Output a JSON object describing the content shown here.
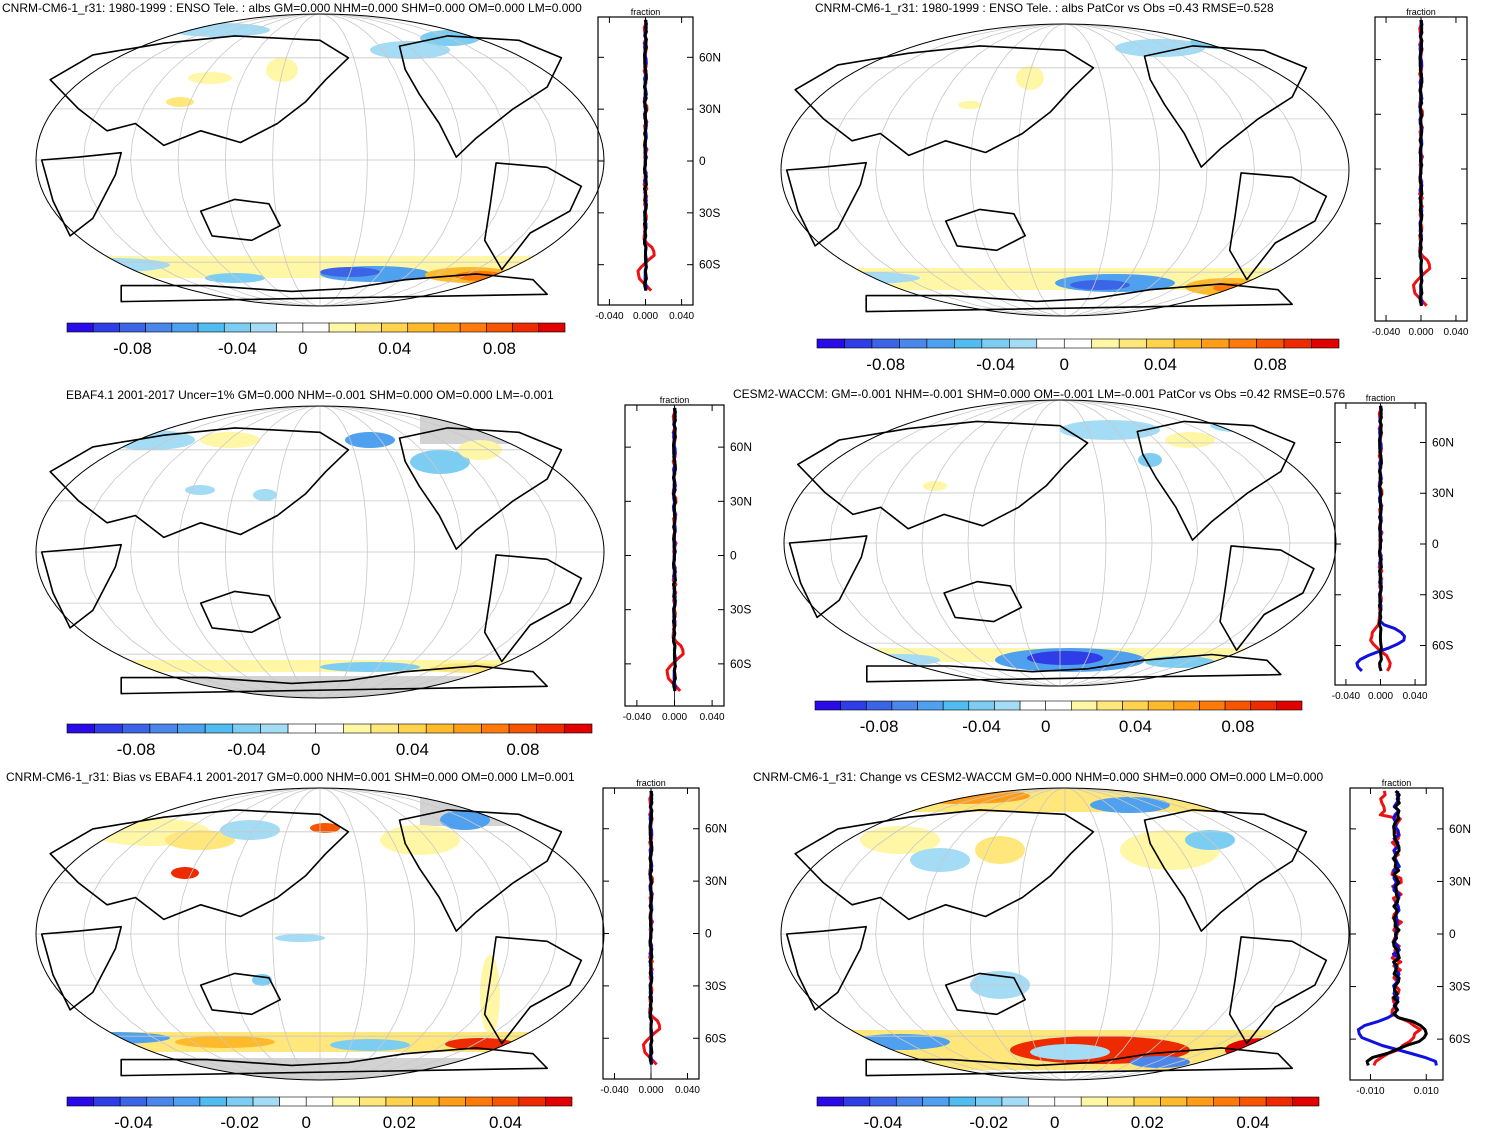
{
  "colors": {
    "land_outline": "#000000",
    "grid": "#c8c8c8",
    "missing": "#d3d3d3",
    "profile_red": "#ee1111",
    "profile_blue": "#1111dd",
    "profile_black": "#000000"
  },
  "palette": [
    "#2a0ae6",
    "#2e3de6",
    "#3c64e6",
    "#4b86ea",
    "#4fa0ee",
    "#50bcf0",
    "#7dcdf2",
    "#a3dcf4",
    "#ffffff",
    "#ffffff",
    "#fff7a6",
    "#ffe77c",
    "#ffd34e",
    "#ffba2c",
    "#ff9d18",
    "#ff7a0a",
    "#f75500",
    "#ee2a00",
    "#e00000"
  ],
  "panels": [
    {
      "id": "p1",
      "title": "CNRM-CM6-1_r31: 1980-1999 : ENSO Tele. : albs GM=0.000 NHM=0.000 SHM=0.000 OM=0.000 LM=0.000",
      "colorbar_labels": [
        "-0.08",
        "-0.04",
        "0",
        "0.04",
        "0.08"
      ],
      "profile_title": "fraction",
      "profile_lat_labels": [
        "60N",
        "30N",
        "0",
        "30S",
        "60S"
      ],
      "profile_x_labels": [
        "-0.040",
        "0.000",
        "0.040"
      ]
    },
    {
      "id": "p2",
      "title": "CNRM-CM6-1_r31: 1980-1999 : ENSO Tele. : albs PatCor vs Obs =0.43 RMSE=0.528",
      "colorbar_labels": [
        "-0.08",
        "-0.04",
        "0",
        "0.04",
        "0.08"
      ],
      "profile_title": "fraction",
      "profile_lat_labels": [],
      "profile_x_labels": [
        "-0.040",
        "0.000",
        "0.040"
      ]
    },
    {
      "id": "p3",
      "title": "EBAF4.1 2001-2017 Uncer=1% GM=0.000 NHM=-0.001 SHM=0.000 OM=0.000 LM=-0.001",
      "colorbar_labels": [
        "-0.08",
        "-0.04",
        "0",
        "0.04",
        "0.08"
      ],
      "profile_title": "fraction",
      "profile_lat_labels": [
        "60N",
        "30N",
        "0",
        "30S",
        "60S"
      ],
      "profile_x_labels": [
        "-0.040",
        "0.000",
        "0.040"
      ]
    },
    {
      "id": "p4",
      "title": "CESM2-WACCM: GM=-0.001 NHM=-0.001 SHM=0.000 OM=-0.001 LM=-0.001 PatCor vs Obs =0.42 RMSE=0.576",
      "colorbar_labels": [
        "-0.08",
        "-0.04",
        "0",
        "0.04",
        "0.08"
      ],
      "profile_title": "fraction",
      "profile_lat_labels": [
        "60N",
        "30N",
        "0",
        "30S",
        "60S"
      ],
      "profile_x_labels": [
        "-0.040",
        "0.000",
        "0.040"
      ]
    },
    {
      "id": "p5",
      "title": "CNRM-CM6-1_r31: Bias vs EBAF4.1 2001-2017 GM=0.000 NHM=0.001 SHM=0.000 OM=0.000 LM=0.001",
      "colorbar_labels": [
        "-0.04",
        "-0.02",
        "0",
        "0.02",
        "0.04"
      ],
      "profile_title": "fraction",
      "profile_lat_labels": [
        "60N",
        "30N",
        "0",
        "30S",
        "60S"
      ],
      "profile_x_labels": [
        "-0.040",
        "0.000",
        "0.040"
      ]
    },
    {
      "id": "p6",
      "title": "CNRM-CM6-1_r31: Change vs CESM2-WACCM GM=0.000 NHM=0.000 SHM=0.000 OM=0.000 LM=0.000",
      "colorbar_labels": [
        "-0.04",
        "-0.02",
        "0",
        "0.02",
        "0.04"
      ],
      "profile_title": "fraction",
      "profile_lat_labels": [
        "60N",
        "30N",
        "0",
        "30S",
        "60S"
      ],
      "profile_x_labels": [
        "-0.010",
        "0.010"
      ]
    }
  ]
}
